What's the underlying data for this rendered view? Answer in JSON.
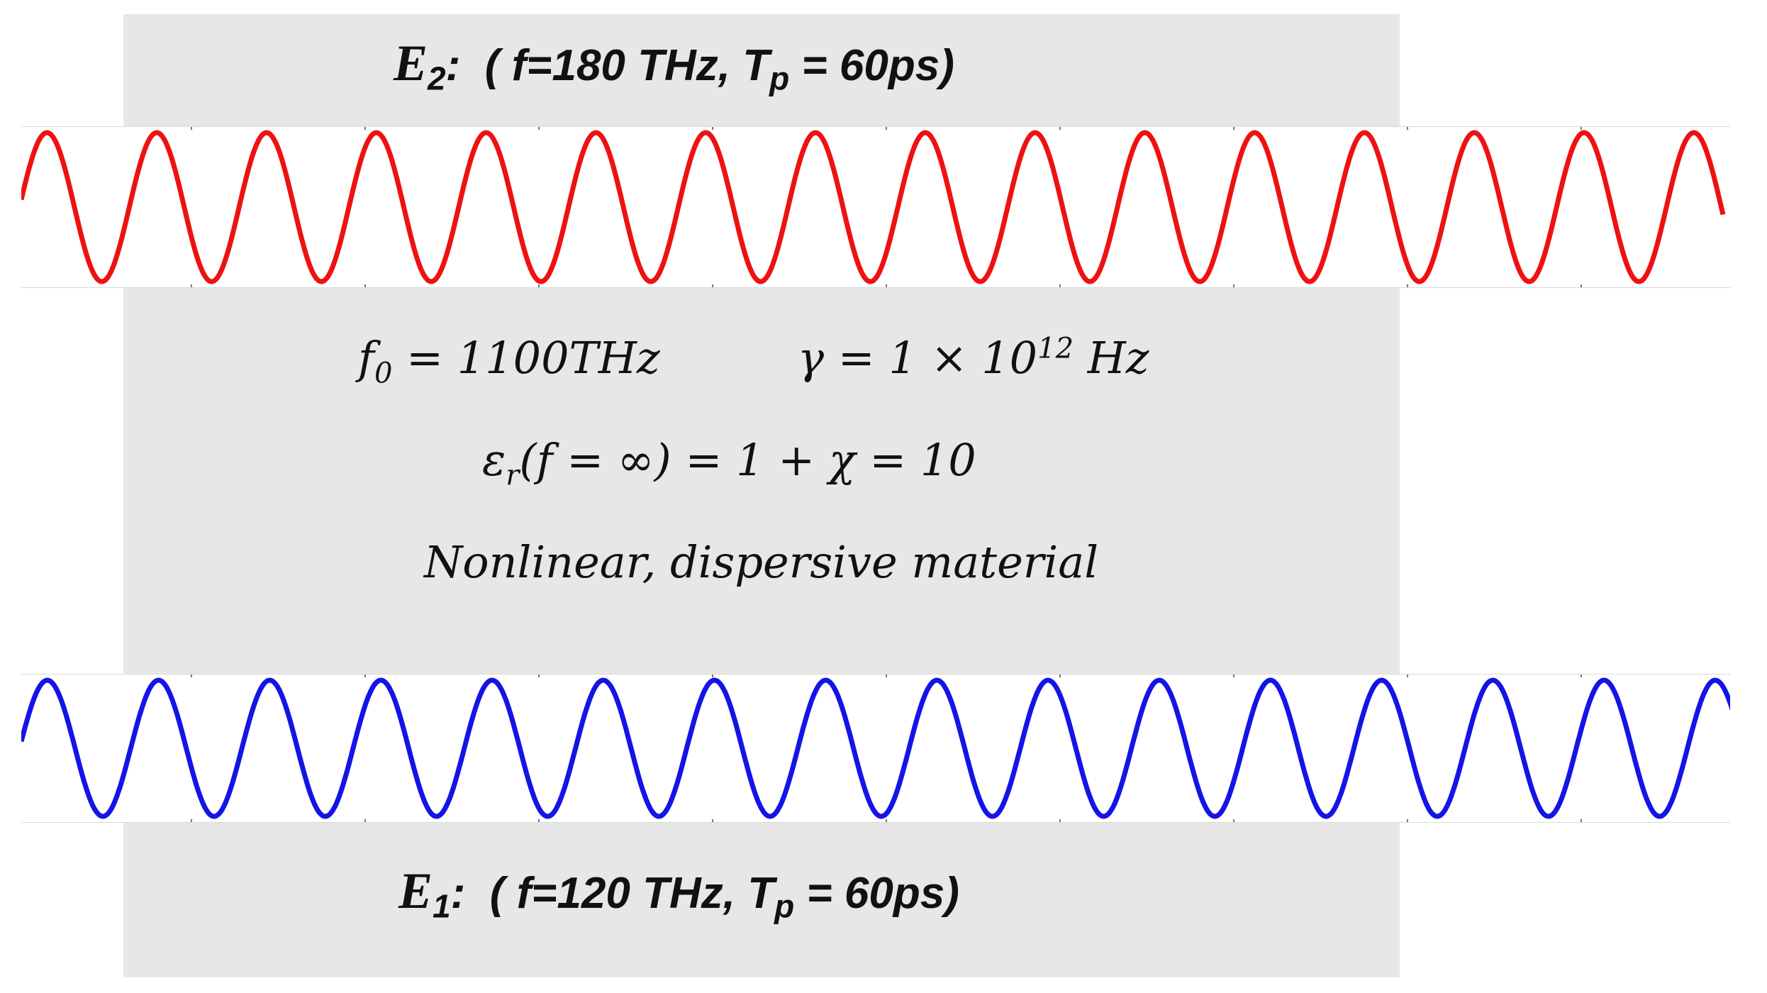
{
  "colors": {
    "background": "#ffffff",
    "material": "#e7e7e7",
    "wave_e2": "#ee1111",
    "wave_e1": "#1414e6"
  },
  "e2_label": {
    "symbol": "E",
    "subscript": "2",
    "colon": ":",
    "params": "( f=180 THz, T",
    "tp_sub": "p",
    "tail": " = 60ps)"
  },
  "e1_label": {
    "symbol": "E",
    "subscript": "1",
    "colon": ":",
    "params": "( f=120 THz, T",
    "tp_sub": "p",
    "tail": " = 60ps)"
  },
  "material": {
    "f0": {
      "symbol": "f",
      "sub": "0",
      "rest": " = 1100THz"
    },
    "gamma": {
      "lhs": "γ = 1 × 10",
      "exp": "12",
      "unit": " Hz"
    },
    "epsilon": {
      "symbol": "ε",
      "sub": "r",
      "rest": "(f = ∞) = 1 + χ = 10"
    },
    "description": "Nonlinear, dispersive material"
  },
  "waves": {
    "e2": {
      "color": "#ee1111",
      "cycles": 15.5
    },
    "e1": {
      "color": "#1414e6",
      "cycles": 15.4
    }
  }
}
